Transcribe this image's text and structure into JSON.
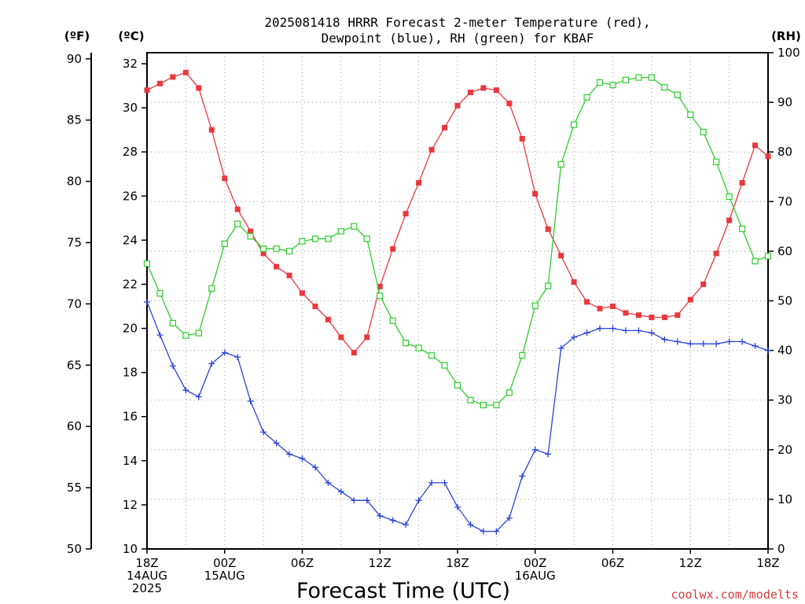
{
  "chart_data": {
    "type": "line",
    "title_line1": "2025081418 HRRR Forecast 2-meter Temperature (red),",
    "title_line2": "Dewpoint (blue), RH (green) for KBAF",
    "xlabel": "Forecast Time (UTC)",
    "units": {
      "fahrenheit": "(ºF)",
      "celsius": "(ºC)",
      "rh": "(RH)"
    },
    "x_ticks": [
      {
        "hour": 0,
        "lines": [
          "18Z",
          "14AUG",
          "2025"
        ]
      },
      {
        "hour": 6,
        "lines": [
          "00Z",
          "15AUG"
        ]
      },
      {
        "hour": 12,
        "lines": [
          "06Z"
        ]
      },
      {
        "hour": 18,
        "lines": [
          "12Z"
        ]
      },
      {
        "hour": 24,
        "lines": [
          "18Z"
        ]
      },
      {
        "hour": 30,
        "lines": [
          "00Z",
          "16AUG"
        ]
      },
      {
        "hour": 36,
        "lines": [
          "06Z"
        ]
      },
      {
        "hour": 42,
        "lines": [
          "12Z"
        ]
      },
      {
        "hour": 48,
        "lines": [
          "18Z"
        ]
      }
    ],
    "x_range": [
      0,
      48
    ],
    "y_celsius_range": [
      10,
      32.5
    ],
    "y_celsius_ticks": [
      "10",
      "12",
      "14",
      "16",
      "18",
      "20",
      "22",
      "24",
      "26",
      "28",
      "30",
      "32"
    ],
    "y_fahrenheit_ticks": [
      "50",
      "55",
      "60",
      "65",
      "70",
      "75",
      "80",
      "85",
      "90"
    ],
    "y_rh_range": [
      0,
      100
    ],
    "y_rh_ticks": [
      "0",
      "10",
      "20",
      "30",
      "40",
      "50",
      "60",
      "70",
      "80",
      "90",
      "100"
    ],
    "grid": true,
    "series": [
      {
        "name": "2-meter Temperature",
        "color": "#e8383d",
        "marker": "filled-square",
        "axis": "celsius",
        "values": [
          30.8,
          31.1,
          31.4,
          31.6,
          30.9,
          29.0,
          26.8,
          25.4,
          24.4,
          23.4,
          22.8,
          22.4,
          21.6,
          21.0,
          20.4,
          19.6,
          18.9,
          19.6,
          21.9,
          23.6,
          25.2,
          26.6,
          28.1,
          29.1,
          30.1,
          30.7,
          30.9,
          30.8,
          30.2,
          28.6,
          26.1,
          24.5,
          23.3,
          22.1,
          21.2,
          20.9,
          21.0,
          20.7,
          20.6,
          20.5,
          20.5,
          20.6,
          21.3,
          22.0,
          23.4,
          24.9,
          26.6,
          28.3,
          27.8
        ]
      },
      {
        "name": "Dewpoint",
        "color": "#2a44d8",
        "marker": "plus",
        "axis": "celsius",
        "values": [
          21.2,
          19.7,
          18.3,
          17.2,
          16.9,
          18.4,
          18.9,
          18.7,
          16.7,
          15.3,
          14.8,
          14.3,
          14.1,
          13.7,
          13.0,
          12.6,
          12.2,
          12.2,
          11.5,
          11.3,
          11.1,
          12.2,
          13.0,
          13.0,
          11.9,
          11.1,
          10.8,
          10.8,
          11.4,
          13.3,
          14.5,
          14.3,
          19.1,
          19.6,
          19.8,
          20.0,
          20.0,
          19.9,
          19.9,
          19.8,
          19.5,
          19.4,
          19.3,
          19.3,
          19.3,
          19.4,
          19.4,
          19.2,
          19.0
        ]
      },
      {
        "name": "RH",
        "color": "#2ecc2e",
        "marker": "open-square",
        "axis": "rh",
        "values": [
          57.5,
          51.5,
          45.5,
          43.0,
          43.5,
          52.5,
          61.5,
          65.5,
          63.0,
          60.5,
          60.5,
          60.0,
          62.0,
          62.5,
          62.5,
          64.0,
          65.0,
          62.5,
          51.0,
          46.0,
          41.5,
          40.5,
          39.0,
          37.0,
          33.0,
          30.0,
          29.0,
          29.0,
          31.5,
          39.0,
          49.0,
          53.0,
          77.5,
          85.5,
          91.0,
          94.0,
          93.5,
          94.5,
          95.0,
          95.0,
          93.0,
          91.5,
          87.5,
          84.0,
          78.0,
          71.0,
          64.5,
          58.0,
          59.0
        ]
      }
    ]
  },
  "watermark": "coolwx.com/modelts"
}
